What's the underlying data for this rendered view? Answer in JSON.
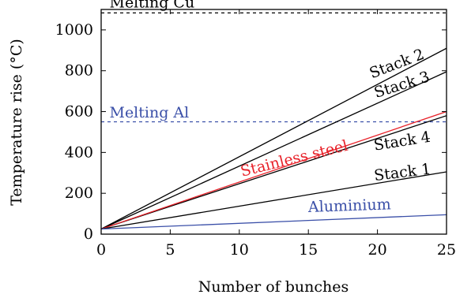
{
  "chart_data": {
    "type": "line",
    "title": "",
    "xlabel": "Number of bunches",
    "ylabel": "Temperature rise (°C)",
    "xlim": [
      0,
      25
    ],
    "ylim": [
      0,
      1100
    ],
    "xticks": [
      0,
      5,
      10,
      15,
      20,
      25
    ],
    "yticks": [
      0,
      200,
      400,
      600,
      800,
      1000
    ],
    "grid": false,
    "legend": "none",
    "series": [
      {
        "name": "Stack 2",
        "color": "#000000",
        "x": [
          0,
          25
        ],
        "y": [
          25,
          910
        ]
      },
      {
        "name": "Stack 3",
        "color": "#000000",
        "x": [
          0,
          25
        ],
        "y": [
          25,
          795
        ]
      },
      {
        "name": "Stack 4",
        "color": "#000000",
        "x": [
          0,
          25
        ],
        "y": [
          25,
          580
        ]
      },
      {
        "name": "Stainless steel",
        "color": "#e8222a",
        "x": [
          0,
          25
        ],
        "y": [
          25,
          600
        ]
      },
      {
        "name": "Stack 1",
        "color": "#000000",
        "x": [
          0,
          25
        ],
        "y": [
          25,
          305
        ]
      },
      {
        "name": "Aluminium",
        "color": "#3a4fa8",
        "x": [
          0,
          25
        ],
        "y": [
          25,
          95
        ]
      }
    ],
    "reference_lines": [
      {
        "label": "Melting Cu",
        "value": 1083,
        "color": "#000000",
        "style": "dashed"
      },
      {
        "label": "Melting Al",
        "value": 550,
        "color": "#3a4fa8",
        "style": "dashed"
      }
    ],
    "annotations": [
      {
        "text": "Melting Cu",
        "color": "#000000",
        "x": 0.6,
        "y": 1110,
        "angle": 0
      },
      {
        "text": "Melting Al",
        "color": "#3a4fa8",
        "x": 0.6,
        "y": 572,
        "angle": 0
      },
      {
        "text": "Stack 2",
        "color": "#000000",
        "x": 19.6,
        "y": 762,
        "angle": -21
      },
      {
        "text": "Stack 3",
        "color": "#000000",
        "x": 19.9,
        "y": 667,
        "angle": -17.5
      },
      {
        "text": "Stack 4",
        "color": "#000000",
        "x": 19.8,
        "y": 410,
        "angle": -9
      },
      {
        "text": "Stack 1",
        "color": "#000000",
        "x": 19.8,
        "y": 262,
        "angle": -7
      },
      {
        "text": "Stainless steel",
        "color": "#e8222a",
        "x": 10.2,
        "y": 282,
        "angle": -14
      },
      {
        "text": "Aluminium",
        "color": "#3a4fa8",
        "x": 15.0,
        "y": 108,
        "angle": -2
      }
    ]
  }
}
